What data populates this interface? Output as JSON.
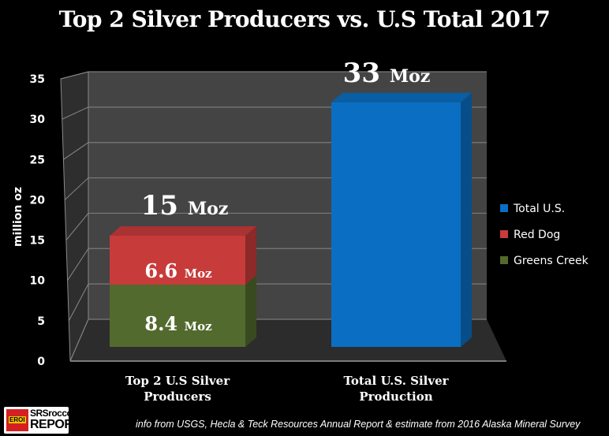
{
  "chart_data": {
    "type": "bar",
    "title": "Top 2 Silver Producers vs. U.S Total 2017",
    "xlabel": "",
    "ylabel": "million oz",
    "ylim": [
      0,
      35
    ],
    "yticks": [
      "0",
      "5",
      "10",
      "15",
      "20",
      "25",
      "30",
      "35"
    ],
    "yticks_values": [
      0,
      5,
      10,
      15,
      20,
      25,
      30,
      35
    ],
    "grid": true,
    "stacked": true,
    "legend_position": "right",
    "categories": [
      "Top 2 U.S Silver Producers",
      "Total U.S. Silver Production"
    ],
    "category_lines": [
      [
        "Top 2 U.S Silver",
        "Producers"
      ],
      [
        "Total U.S. Silver",
        "Production"
      ]
    ],
    "series": [
      {
        "name": "Greens Creek",
        "color": "#536a2e",
        "values": [
          8.4,
          0
        ]
      },
      {
        "name": "Red Dog",
        "color": "#c83b3b",
        "values": [
          6.6,
          0
        ]
      },
      {
        "name": "Total U.S.",
        "color": "#0a6fc2",
        "values": [
          0,
          33
        ]
      }
    ],
    "legend": [
      "Total U.S.",
      "Red Dog",
      "Greens Creek"
    ],
    "annotations": {
      "total_top2": {
        "num": "15",
        "unit": "Moz"
      },
      "red_dog": {
        "num": "6.6",
        "unit": "Moz"
      },
      "greens_creek": {
        "num": "8.4",
        "unit": "Moz"
      },
      "total_us": {
        "num": "33",
        "unit": "Moz"
      }
    }
  },
  "footer": {
    "source": "info from USGS, Hecla & Teck Resources Annual Report & estimate from 2016 Alaska Mineral Survey",
    "logo": {
      "badge": "EROI",
      "line1": "SRSrocco",
      "line2": "REPORT"
    }
  }
}
